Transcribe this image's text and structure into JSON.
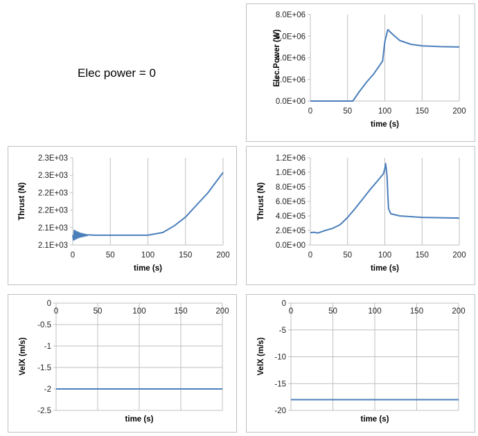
{
  "note": "Elec power = 0",
  "colors": {
    "line": "#4a7ebb",
    "grid": "#bfbfbf",
    "border": "#bfbfbf"
  },
  "chart_data": [
    {
      "id": "elec-power",
      "type": "line",
      "xlabel": "time (s)",
      "ylabel": "Elec.Power (W)",
      "xlim": [
        0,
        200
      ],
      "ylim": [
        0,
        8000000
      ],
      "xticks": [
        "0",
        "50",
        "100",
        "150",
        "200"
      ],
      "yticks": [
        "0.0E+00",
        "2.0E+06",
        "4.0E+06",
        "6.0E+06",
        "8.0E+06"
      ],
      "grid": "vertical",
      "series": [
        {
          "name": "Elec.Power",
          "x": [
            0,
            57,
            65,
            75,
            85,
            97,
            100,
            104,
            110,
            120,
            135,
            150,
            175,
            200
          ],
          "y": [
            0,
            0,
            800000,
            1700000,
            2500000,
            3700000,
            5500000,
            6600000,
            6200000,
            5600000,
            5250000,
            5100000,
            5030000,
            5000000
          ]
        }
      ]
    },
    {
      "id": "thrust-left",
      "type": "line",
      "xlabel": "time (s)",
      "ylabel": "Thrust (N)",
      "xlim": [
        0,
        200
      ],
      "ylim": [
        2050,
        2300
      ],
      "xticks": [
        "0",
        "50",
        "100",
        "150",
        "200"
      ],
      "yticks": [
        "2.1E+03",
        "2.1E+03",
        "2.2E+03",
        "2.2E+03",
        "2.3E+03",
        "2.3E+03"
      ],
      "grid": "vertical",
      "series": [
        {
          "name": "Thrust",
          "x": [
            0,
            1,
            2,
            3,
            4,
            5,
            6,
            7,
            8,
            9,
            10,
            11,
            12,
            13,
            14,
            15,
            16,
            17,
            18,
            19,
            20,
            30,
            60,
            100,
            120,
            135,
            150,
            165,
            180,
            200
          ],
          "y": [
            2078,
            2064,
            2092,
            2066,
            2090,
            2068,
            2088,
            2070,
            2086,
            2072,
            2084,
            2073,
            2083,
            2074,
            2082,
            2075,
            2081,
            2076,
            2080,
            2077,
            2079,
            2078,
            2078,
            2078,
            2086,
            2105,
            2130,
            2165,
            2200,
            2258
          ]
        }
      ]
    },
    {
      "id": "thrust-right",
      "type": "line",
      "xlabel": "time (s)",
      "ylabel": "Thrust (N)",
      "xlim": [
        0,
        200
      ],
      "ylim": [
        0,
        1200000
      ],
      "xticks": [
        "0",
        "50",
        "100",
        "150",
        "200"
      ],
      "yticks": [
        "0.0E+00",
        "2.0E+05",
        "4.0E+05",
        "6.0E+05",
        "8.0E+05",
        "1.0E+06",
        "1.2E+06"
      ],
      "grid": "vertical",
      "series": [
        {
          "name": "Thrust",
          "x": [
            0,
            5,
            10,
            20,
            30,
            40,
            50,
            60,
            70,
            80,
            90,
            98,
            100,
            101,
            102,
            103,
            104,
            105,
            108,
            120,
            150,
            200
          ],
          "y": [
            170000,
            175000,
            165000,
            200000,
            230000,
            280000,
            380000,
            500000,
            630000,
            760000,
            880000,
            980000,
            1050000,
            1120000,
            1050000,
            950000,
            700000,
            500000,
            430000,
            400000,
            380000,
            370000
          ]
        }
      ]
    },
    {
      "id": "velx-left",
      "type": "line",
      "xlabel": "time (s)",
      "ylabel": "VelX (m/s)",
      "xlim": [
        0,
        200
      ],
      "ylim": [
        -2.5,
        0
      ],
      "xaxis": "top",
      "xticks": [
        "0",
        "50",
        "100",
        "150",
        "200"
      ],
      "yticks": [
        "-2.5",
        "-2",
        "-1.5",
        "-1",
        "-0.5",
        "0"
      ],
      "grid": "both",
      "series": [
        {
          "name": "VelX",
          "x": [
            0,
            200
          ],
          "y": [
            -2,
            -2
          ]
        }
      ]
    },
    {
      "id": "velx-right",
      "type": "line",
      "xlabel": "time (s)",
      "ylabel": "VelX (m/s)",
      "xlim": [
        0,
        200
      ],
      "ylim": [
        -20,
        0
      ],
      "xaxis": "top",
      "xticks": [
        "0",
        "50",
        "100",
        "150",
        "200"
      ],
      "yticks": [
        "-20",
        "-15",
        "-10",
        "-5",
        "0"
      ],
      "grid": "both",
      "series": [
        {
          "name": "VelX",
          "x": [
            0,
            200
          ],
          "y": [
            -18,
            -18
          ]
        }
      ]
    }
  ]
}
